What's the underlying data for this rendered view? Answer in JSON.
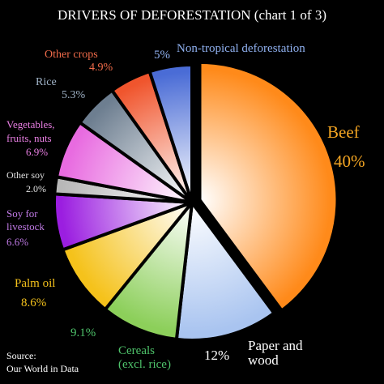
{
  "chart_data": {
    "type": "pie",
    "title": "DRIVERS OF DEFORESTATION (chart 1 of 3)",
    "source_label": "Source:",
    "source_name": "Our World in Data",
    "slices": [
      {
        "name_lines": [
          "Beef"
        ],
        "label": "Beef",
        "value_label": "40%",
        "value": 40,
        "color": "#ff8a1a",
        "text_color": "#f5a623",
        "exploded": true
      },
      {
        "name_lines": [
          "Paper and",
          "wood"
        ],
        "label": "Paper and wood",
        "value_label": "12%",
        "value": 12,
        "color": "#a9c4f0",
        "text_color": "#ffffff"
      },
      {
        "name_lines": [
          "Cereals",
          "(excl. rice)"
        ],
        "label": "Cereals (excl. rice)",
        "value_label": "9.1%",
        "value": 9.1,
        "color": "#8ccf5a",
        "text_color": "#4ec26a"
      },
      {
        "name_lines": [
          "Palm oil"
        ],
        "label": "Palm oil",
        "value_label": "8.6%",
        "value": 8.6,
        "color": "#f5c21b",
        "text_color": "#f5c21b"
      },
      {
        "name_lines": [
          "Soy for",
          "livestock"
        ],
        "label": "Soy for livestock",
        "value_label": "6.6%",
        "value": 6.6,
        "color": "#9b1ee0",
        "text_color": "#c07ae6"
      },
      {
        "name_lines": [
          "Other soy"
        ],
        "label": "Other soy",
        "value_label": "2.0%",
        "value": 2.0,
        "color": "#b8b8b8",
        "text_color": "#e0e0e0"
      },
      {
        "name_lines": [
          "Vegetables,",
          "fruits, nuts"
        ],
        "label": "Vegetables, fruits, nuts",
        "value_label": "6.9%",
        "value": 6.9,
        "color": "#e86be0",
        "text_color": "#ea7fe4"
      },
      {
        "name_lines": [
          "Rice"
        ],
        "label": "Rice",
        "value_label": "5.3%",
        "value": 5.3,
        "color": "#6d7e90",
        "text_color": "#9fb2c6"
      },
      {
        "name_lines": [
          "Other crops"
        ],
        "label": "Other crops",
        "value_label": "4.9%",
        "value": 4.9,
        "color": "#f0552d",
        "text_color": "#f26c4a"
      },
      {
        "name_lines": [
          "Non-tropical deforestation"
        ],
        "label": "Non-tropical deforestation",
        "value_label": "5%",
        "value": 5,
        "color": "#4a6cd6",
        "text_color": "#8fb0ef"
      }
    ]
  }
}
